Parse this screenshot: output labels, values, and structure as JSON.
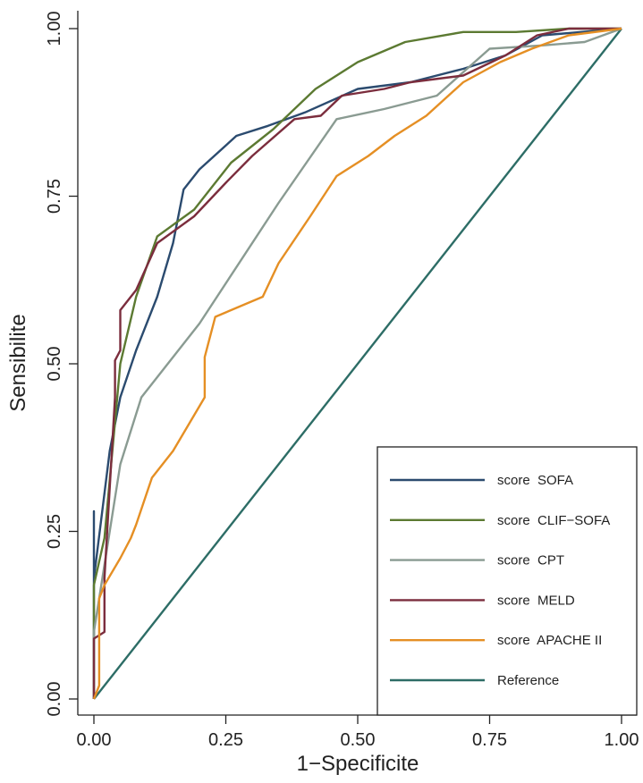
{
  "chart_data": {
    "type": "line",
    "title": "",
    "xlabel": "1−Specificite",
    "ylabel": "Sensibilite",
    "xlim": [
      0,
      1
    ],
    "ylim": [
      0,
      1
    ],
    "x_ticks": [
      "0.00",
      "0.25",
      "0.50",
      "0.75",
      "1.00"
    ],
    "y_ticks": [
      "0.00",
      "0.25",
      "0.50",
      "0.75",
      "1.00"
    ],
    "grid": false,
    "legend_position": "bottom-right",
    "series": [
      {
        "name": "score  SOFA",
        "color": "#2b4b6f",
        "points": [
          [
            0,
            0
          ],
          [
            0,
            0.28
          ],
          [
            0,
            0.18
          ],
          [
            0.03,
            0.37
          ],
          [
            0.05,
            0.45
          ],
          [
            0.08,
            0.52
          ],
          [
            0.12,
            0.6
          ],
          [
            0.15,
            0.68
          ],
          [
            0.17,
            0.76
          ],
          [
            0.2,
            0.79
          ],
          [
            0.27,
            0.84
          ],
          [
            0.33,
            0.855
          ],
          [
            0.4,
            0.875
          ],
          [
            0.5,
            0.91
          ],
          [
            0.6,
            0.92
          ],
          [
            0.7,
            0.94
          ],
          [
            0.78,
            0.96
          ],
          [
            0.85,
            0.99
          ],
          [
            1,
            1
          ]
        ]
      },
      {
        "name": "score  CLIF−SOFA",
        "color": "#5c7a32",
        "points": [
          [
            0,
            0
          ],
          [
            0,
            0.17
          ],
          [
            0.02,
            0.24
          ],
          [
            0.05,
            0.5
          ],
          [
            0.08,
            0.6
          ],
          [
            0.12,
            0.69
          ],
          [
            0.19,
            0.73
          ],
          [
            0.26,
            0.8
          ],
          [
            0.34,
            0.85
          ],
          [
            0.42,
            0.91
          ],
          [
            0.5,
            0.95
          ],
          [
            0.59,
            0.98
          ],
          [
            0.7,
            0.995
          ],
          [
            0.8,
            0.995
          ],
          [
            0.9,
            1
          ],
          [
            1,
            1
          ]
        ]
      },
      {
        "name": "score  CPT",
        "color": "#8a9b92",
        "points": [
          [
            0,
            0
          ],
          [
            0,
            0.1
          ],
          [
            0.02,
            0.2
          ],
          [
            0.05,
            0.35
          ],
          [
            0.09,
            0.45
          ],
          [
            0.2,
            0.56
          ],
          [
            0.35,
            0.74
          ],
          [
            0.46,
            0.865
          ],
          [
            0.55,
            0.88
          ],
          [
            0.65,
            0.9
          ],
          [
            0.75,
            0.97
          ],
          [
            0.85,
            0.975
          ],
          [
            0.93,
            0.98
          ],
          [
            1,
            1
          ]
        ]
      },
      {
        "name": "score  MELD",
        "color": "#7b2d3d",
        "points": [
          [
            0,
            0
          ],
          [
            0,
            0.09
          ],
          [
            0.02,
            0.1
          ],
          [
            0.02,
            0.18
          ],
          [
            0.04,
            0.45
          ],
          [
            0.04,
            0.505
          ],
          [
            0.05,
            0.52
          ],
          [
            0.05,
            0.58
          ],
          [
            0.06,
            0.59
          ],
          [
            0.08,
            0.61
          ],
          [
            0.12,
            0.68
          ],
          [
            0.19,
            0.72
          ],
          [
            0.25,
            0.77
          ],
          [
            0.3,
            0.81
          ],
          [
            0.38,
            0.865
          ],
          [
            0.43,
            0.87
          ],
          [
            0.47,
            0.9
          ],
          [
            0.55,
            0.91
          ],
          [
            0.6,
            0.92
          ],
          [
            0.7,
            0.93
          ],
          [
            0.78,
            0.96
          ],
          [
            0.84,
            0.99
          ],
          [
            0.9,
            1
          ],
          [
            1,
            1
          ]
        ]
      },
      {
        "name": "score  APACHE II",
        "color": "#e58f24",
        "points": [
          [
            0,
            0
          ],
          [
            0.01,
            0.02
          ],
          [
            0.01,
            0.15
          ],
          [
            0.02,
            0.17
          ],
          [
            0.05,
            0.21
          ],
          [
            0.07,
            0.24
          ],
          [
            0.08,
            0.26
          ],
          [
            0.11,
            0.33
          ],
          [
            0.15,
            0.37
          ],
          [
            0.18,
            0.41
          ],
          [
            0.21,
            0.45
          ],
          [
            0.21,
            0.51
          ],
          [
            0.23,
            0.57
          ],
          [
            0.32,
            0.6
          ],
          [
            0.35,
            0.65
          ],
          [
            0.41,
            0.72
          ],
          [
            0.46,
            0.78
          ],
          [
            0.52,
            0.81
          ],
          [
            0.57,
            0.84
          ],
          [
            0.63,
            0.87
          ],
          [
            0.7,
            0.92
          ],
          [
            0.77,
            0.95
          ],
          [
            0.83,
            0.97
          ],
          [
            0.9,
            0.99
          ],
          [
            1,
            1
          ]
        ]
      },
      {
        "name": "Reference",
        "color": "#2d6d66",
        "points": [
          [
            0,
            0
          ],
          [
            1,
            1
          ]
        ]
      }
    ]
  }
}
